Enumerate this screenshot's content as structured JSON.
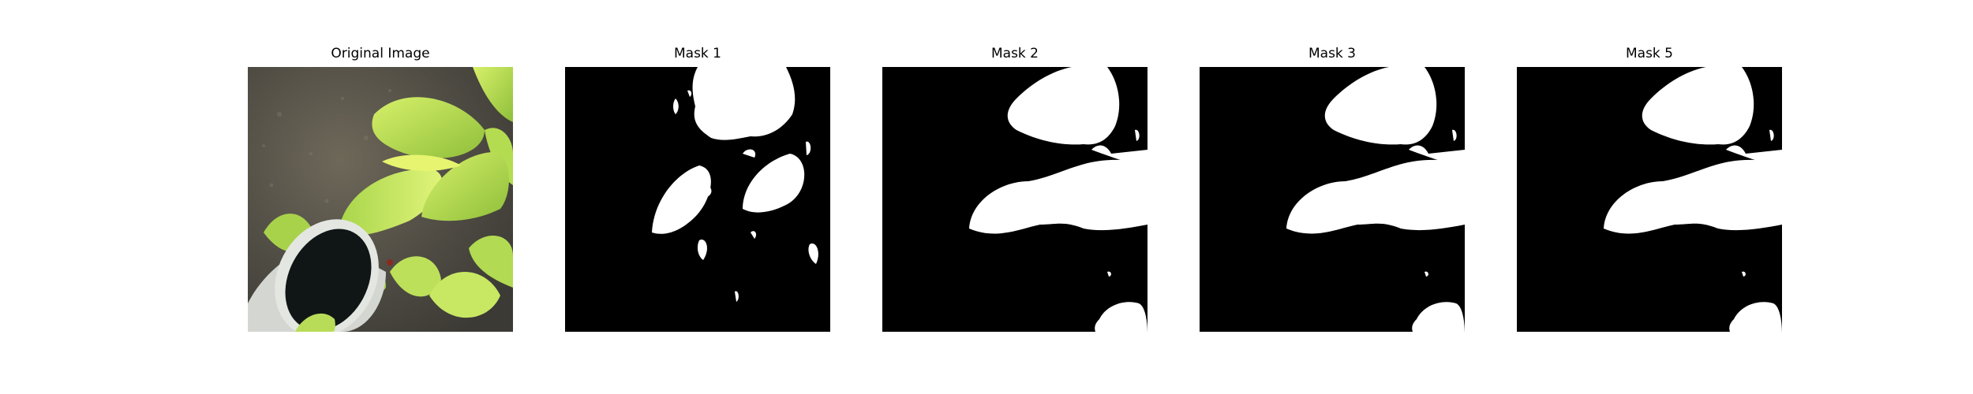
{
  "figure": {
    "panels": [
      {
        "title": "Original Image",
        "kind": "photo"
      },
      {
        "title": "Mask 1",
        "kind": "mask"
      },
      {
        "title": "Mask 2",
        "kind": "mask"
      },
      {
        "title": "Mask 3",
        "kind": "mask"
      },
      {
        "title": "Mask 5",
        "kind": "mask"
      }
    ],
    "colors": {
      "background": "#ffffff",
      "mask_background": "#000000",
      "mask_foreground": "#ffffff",
      "leaf_light": "#c6e85a",
      "leaf_dark": "#8fb93a",
      "ground": "#5a564d",
      "pot": "#d4d6d2",
      "pot_inner": "#101616"
    }
  }
}
